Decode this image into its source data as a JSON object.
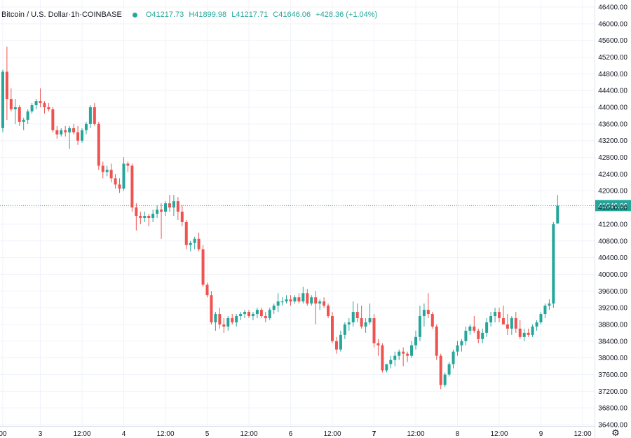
{
  "header": {
    "symbol": "Bitcoin / U.S. Dollar",
    "interval": "1h",
    "exchange": "COINBASE",
    "sep": " · ",
    "open": "O41217.73",
    "high": "H41899.98",
    "low": "L41217.71",
    "close": "C41646.06",
    "change": "+428.36 (+1.04%)"
  },
  "colors": {
    "up": "#26a69a",
    "down": "#ef5350",
    "grid": "#f0f3fa",
    "price_line": "#26a69a",
    "axis_text": "#131722"
  },
  "icons": {
    "settings": "gear-icon",
    "status": "dot-icon"
  },
  "chart_data": {
    "type": "candlestick",
    "y_axis": {
      "range": [
        36400,
        46400
      ],
      "ticks": [
        "46400.00",
        "46000.00",
        "45600.00",
        "45200.00",
        "44800.00",
        "44400.00",
        "44000.00",
        "43600.00",
        "43200.00",
        "42800.00",
        "42400.00",
        "42000.00",
        "41600.00",
        "41200.00",
        "40800.00",
        "40400.00",
        "40000.00",
        "39600.00",
        "39200.00",
        "38800.00",
        "38400.00",
        "38000.00",
        "37600.00",
        "37200.00",
        "36800.00",
        "36400.00"
      ],
      "tick_values": [
        46400,
        46000,
        45600,
        45200,
        44800,
        44400,
        44000,
        43600,
        43200,
        42800,
        42400,
        42000,
        41600,
        41200,
        40800,
        40400,
        40000,
        39600,
        39200,
        38800,
        38400,
        38000,
        37600,
        37200,
        36800,
        36400
      ]
    },
    "x_axis": {
      "ticks": [
        "00",
        "3",
        "12:00",
        "4",
        "12:00",
        "5",
        "12:00",
        "6",
        "12:00",
        "7",
        "12:00",
        "8",
        "12:00",
        "9",
        "12:00"
      ],
      "tick_index": [
        1,
        10,
        20,
        30,
        40,
        50,
        60,
        70,
        80,
        90,
        100,
        110,
        120,
        130,
        140
      ],
      "bold": [
        false,
        false,
        false,
        false,
        false,
        false,
        false,
        false,
        false,
        true,
        false,
        false,
        false,
        false,
        false
      ]
    },
    "last_price": 41646.06,
    "last_price_label": "41646.06",
    "candles": [
      [
        43800,
        43850,
        43400,
        43500
      ],
      [
        43500,
        44900,
        43400,
        44850
      ],
      [
        44850,
        45450,
        43700,
        44200
      ],
      [
        44200,
        44450,
        43900,
        43950
      ],
      [
        43950,
        44200,
        43600,
        44000
      ],
      [
        44000,
        44050,
        43550,
        43650
      ],
      [
        43650,
        43750,
        43450,
        43700
      ],
      [
        43700,
        43950,
        43600,
        43900
      ],
      [
        43900,
        44100,
        43850,
        44050
      ],
      [
        44050,
        44200,
        43950,
        44150
      ],
      [
        44150,
        44450,
        44000,
        44100
      ],
      [
        44100,
        44150,
        43850,
        44000
      ],
      [
        44000,
        44100,
        43900,
        43950
      ],
      [
        43950,
        44000,
        43400,
        43450
      ],
      [
        43450,
        43550,
        43250,
        43350
      ],
      [
        43350,
        43500,
        43300,
        43450
      ],
      [
        43450,
        43550,
        43300,
        43400
      ],
      [
        43400,
        43550,
        43000,
        43500
      ],
      [
        43500,
        43600,
        43350,
        43400
      ],
      [
        43400,
        43550,
        43100,
        43200
      ],
      [
        43200,
        43500,
        43150,
        43450
      ],
      [
        43450,
        43650,
        43350,
        43600
      ],
      [
        43600,
        44050,
        43500,
        44000
      ],
      [
        44000,
        44100,
        43550,
        43600
      ],
      [
        43600,
        43650,
        42500,
        42600
      ],
      [
        42600,
        42700,
        42300,
        42450
      ],
      [
        42450,
        42600,
        42350,
        42500
      ],
      [
        42500,
        42650,
        42200,
        42300
      ],
      [
        42300,
        42400,
        42050,
        42150
      ],
      [
        42150,
        42300,
        41950,
        42050
      ],
      [
        42050,
        42800,
        42000,
        42650
      ],
      [
        42650,
        42700,
        42450,
        42600
      ],
      [
        42600,
        42650,
        41500,
        41600
      ],
      [
        41600,
        41700,
        41050,
        41400
      ],
      [
        41400,
        41500,
        41200,
        41350
      ],
      [
        41350,
        41500,
        41250,
        41400
      ],
      [
        41400,
        41450,
        41150,
        41350
      ],
      [
        41350,
        41550,
        41250,
        41450
      ],
      [
        41450,
        41650,
        41350,
        41550
      ],
      [
        41550,
        41700,
        40850,
        41500
      ],
      [
        41500,
        41750,
        41400,
        41700
      ],
      [
        41700,
        41900,
        41500,
        41600
      ],
      [
        41600,
        41900,
        41400,
        41750
      ],
      [
        41750,
        41850,
        41300,
        41500
      ],
      [
        41500,
        41650,
        41150,
        41250
      ],
      [
        41250,
        41300,
        40600,
        40700
      ],
      [
        40700,
        40800,
        40550,
        40750
      ],
      [
        40750,
        40900,
        40600,
        40850
      ],
      [
        40850,
        41000,
        40550,
        40600
      ],
      [
        40600,
        40700,
        39700,
        39750
      ],
      [
        39750,
        39800,
        39450,
        39500
      ],
      [
        39500,
        39600,
        38800,
        38850
      ],
      [
        38850,
        39100,
        38650,
        39050
      ],
      [
        39050,
        39200,
        38700,
        38800
      ],
      [
        38800,
        38950,
        38600,
        38750
      ],
      [
        38750,
        39000,
        38650,
        38950
      ],
      [
        38950,
        39050,
        38800,
        38850
      ],
      [
        38850,
        39050,
        38750,
        39000
      ],
      [
        39000,
        39100,
        38900,
        39050
      ],
      [
        39050,
        39150,
        38950,
        39100
      ],
      [
        39100,
        39150,
        38950,
        39000
      ],
      [
        39000,
        39100,
        38900,
        39050
      ],
      [
        39050,
        39200,
        38950,
        39150
      ],
      [
        39150,
        39200,
        38950,
        39000
      ],
      [
        39000,
        39100,
        38850,
        38950
      ],
      [
        38950,
        39200,
        38900,
        39150
      ],
      [
        39150,
        39300,
        39050,
        39250
      ],
      [
        39250,
        39550,
        39100,
        39350
      ],
      [
        39350,
        39450,
        39250,
        39350
      ],
      [
        39350,
        39500,
        39300,
        39400
      ],
      [
        39400,
        39500,
        39250,
        39350
      ],
      [
        39350,
        39500,
        39300,
        39450
      ],
      [
        39450,
        39550,
        39300,
        39350
      ],
      [
        39350,
        39700,
        39300,
        39550
      ],
      [
        39550,
        39650,
        39250,
        39300
      ],
      [
        39300,
        39500,
        39250,
        39450
      ],
      [
        39450,
        39600,
        38800,
        39300
      ],
      [
        39300,
        39400,
        39150,
        39350
      ],
      [
        39350,
        39450,
        39200,
        39250
      ],
      [
        39250,
        39300,
        38950,
        39000
      ],
      [
        39000,
        39100,
        38350,
        38400
      ],
      [
        38400,
        38500,
        38100,
        38200
      ],
      [
        38200,
        38650,
        38150,
        38550
      ],
      [
        38550,
        38850,
        38450,
        38800
      ],
      [
        38800,
        38950,
        38650,
        38850
      ],
      [
        38850,
        39350,
        38750,
        39100
      ],
      [
        39100,
        39300,
        38850,
        38950
      ],
      [
        38950,
        39250,
        38700,
        38750
      ],
      [
        38750,
        38950,
        38600,
        38850
      ],
      [
        38850,
        39300,
        38800,
        38950
      ],
      [
        38950,
        39050,
        38250,
        38350
      ],
      [
        38350,
        38450,
        38050,
        38300
      ],
      [
        38300,
        38350,
        37650,
        37700
      ],
      [
        37700,
        37850,
        37650,
        37850
      ],
      [
        37850,
        38050,
        37750,
        37950
      ],
      [
        37950,
        38150,
        37800,
        38050
      ],
      [
        38050,
        38200,
        37950,
        38150
      ],
      [
        38150,
        38250,
        37800,
        38100
      ],
      [
        38100,
        38150,
        37900,
        38050
      ],
      [
        38050,
        38400,
        38000,
        38300
      ],
      [
        38300,
        38650,
        38200,
        38500
      ],
      [
        38500,
        39250,
        38400,
        39000
      ],
      [
        39000,
        39300,
        38750,
        39150
      ],
      [
        39150,
        39550,
        38950,
        39050
      ],
      [
        39050,
        39100,
        38700,
        38750
      ],
      [
        38750,
        38800,
        37950,
        38050
      ],
      [
        38050,
        38100,
        37250,
        37350
      ],
      [
        37350,
        37650,
        37300,
        37600
      ],
      [
        37600,
        37900,
        37550,
        37850
      ],
      [
        37850,
        38200,
        37750,
        38150
      ],
      [
        38150,
        38400,
        38050,
        38300
      ],
      [
        38300,
        38450,
        38150,
        38400
      ],
      [
        38400,
        38750,
        38300,
        38650
      ],
      [
        38650,
        38800,
        38550,
        38750
      ],
      [
        38750,
        39000,
        38600,
        38650
      ],
      [
        38650,
        38700,
        38350,
        38450
      ],
      [
        38450,
        38700,
        38350,
        38600
      ],
      [
        38600,
        38950,
        38500,
        38850
      ],
      [
        38850,
        39100,
        38750,
        39000
      ],
      [
        39000,
        39200,
        38850,
        39100
      ],
      [
        39100,
        39200,
        38850,
        38950
      ],
      [
        38950,
        39250,
        38800,
        38800
      ],
      [
        38800,
        39050,
        38550,
        38700
      ],
      [
        38700,
        39000,
        38550,
        38950
      ],
      [
        38950,
        39100,
        38600,
        38700
      ],
      [
        38700,
        38900,
        38450,
        38500
      ],
      [
        38500,
        38700,
        38400,
        38600
      ],
      [
        38600,
        38700,
        38500,
        38550
      ],
      [
        38550,
        38800,
        38500,
        38750
      ],
      [
        38750,
        38900,
        38650,
        38850
      ],
      [
        38850,
        39100,
        38800,
        39050
      ],
      [
        39050,
        39300,
        38950,
        39250
      ],
      [
        39250,
        39400,
        39150,
        39300
      ],
      [
        39300,
        41250,
        39200,
        41200
      ],
      [
        41217.73,
        41899.98,
        41217.71,
        41646.06
      ]
    ]
  }
}
